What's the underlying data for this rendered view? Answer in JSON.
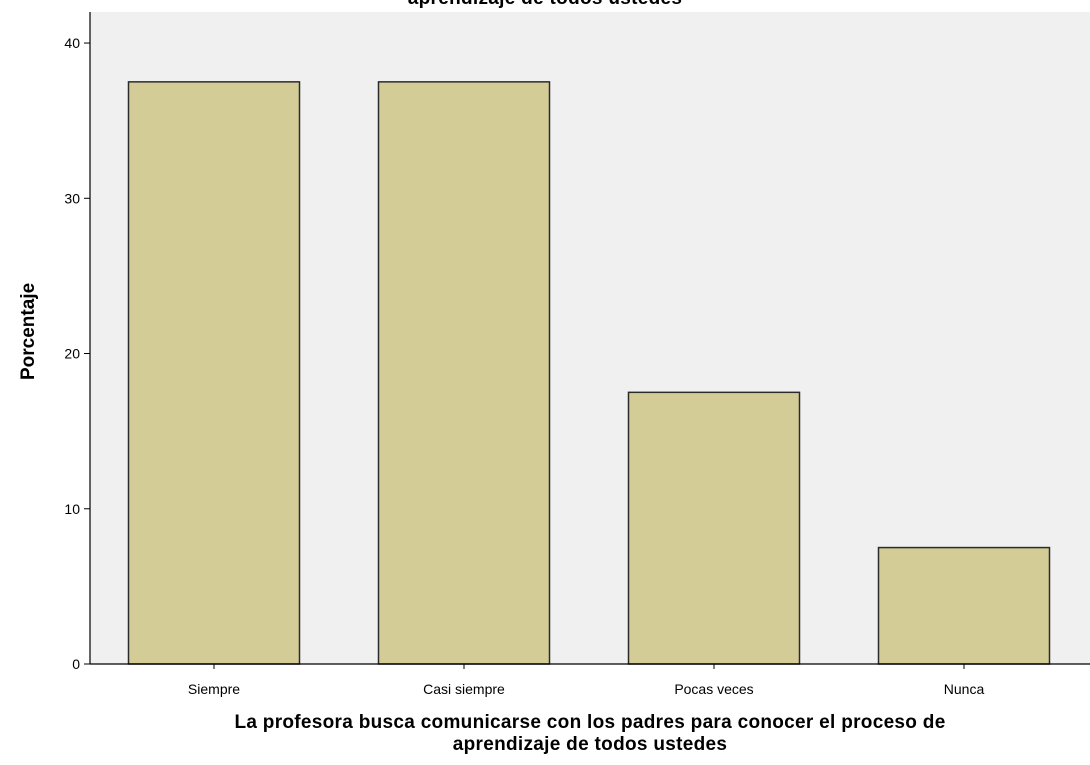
{
  "chart_data": {
    "type": "bar",
    "title": "aprendizaje de todos ustedes",
    "categories": [
      "Siempre",
      "Casi siempre",
      "Pocas veces",
      "Nunca"
    ],
    "values": [
      37.5,
      37.5,
      17.5,
      7.5
    ],
    "xlabel_line1": "La profesora busca comunicarse con los padres para conocer el proceso de",
    "xlabel_line2": "aprendizaje de todos ustedes",
    "ylabel": "Porcentaje",
    "ylim": [
      0,
      42
    ],
    "yticks": [
      0,
      10,
      20,
      30,
      40
    ],
    "grid": false,
    "colors": {
      "bar_fill": "#d3cc96",
      "bar_stroke": "#2b2b2b",
      "plot_bg": "#f0f0f0",
      "axis": "#000000"
    }
  }
}
